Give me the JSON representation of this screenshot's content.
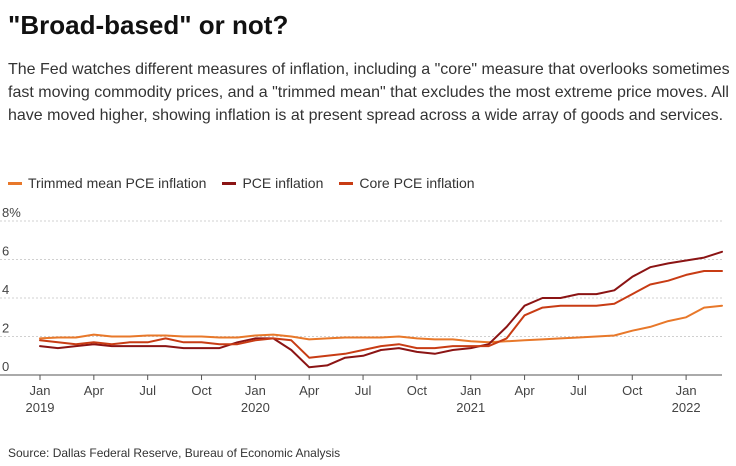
{
  "title": "\"Broad-based\" or not?",
  "subtitle": "The Fed watches different measures of inflation, including a \"core\" measure that overlooks sometimes fast moving commodity prices, and a \"trimmed mean\" that excludes the most extreme price moves. All have moved higher, showing inflation is at present spread across a wide array of goods and services.",
  "source": "Source: Dallas Federal Reserve, Bureau of Economic Analysis",
  "chart_data": {
    "type": "line",
    "title": "\"Broad-based\" or not?",
    "xlabel": "",
    "ylabel": "",
    "ylim": [
      0,
      8
    ],
    "yticks": [
      0,
      2,
      4,
      6,
      8
    ],
    "ytick_labels": [
      "0",
      "2",
      "4",
      "6",
      "8%"
    ],
    "grid": true,
    "legend_position": "top-left",
    "x_tick_labels": [
      {
        "index": 0,
        "month": "Jan",
        "year": "2019"
      },
      {
        "index": 3,
        "month": "Apr",
        "year": ""
      },
      {
        "index": 6,
        "month": "Jul",
        "year": ""
      },
      {
        "index": 9,
        "month": "Oct",
        "year": ""
      },
      {
        "index": 12,
        "month": "Jan",
        "year": "2020"
      },
      {
        "index": 15,
        "month": "Apr",
        "year": ""
      },
      {
        "index": 18,
        "month": "Jul",
        "year": ""
      },
      {
        "index": 21,
        "month": "Oct",
        "year": ""
      },
      {
        "index": 24,
        "month": "Jan",
        "year": "2021"
      },
      {
        "index": 27,
        "month": "Apr",
        "year": ""
      },
      {
        "index": 30,
        "month": "Jul",
        "year": ""
      },
      {
        "index": 33,
        "month": "Oct",
        "year": ""
      },
      {
        "index": 36,
        "month": "Jan",
        "year": "2022"
      }
    ],
    "series": [
      {
        "name": "Trimmed mean PCE inflation",
        "color": "#e8782a",
        "values": [
          1.9,
          1.95,
          1.95,
          2.1,
          2.0,
          2.0,
          2.05,
          2.05,
          2.0,
          2.0,
          1.95,
          1.95,
          2.05,
          2.1,
          2.0,
          1.85,
          1.9,
          1.95,
          1.95,
          1.95,
          2.0,
          1.9,
          1.85,
          1.85,
          1.75,
          1.7,
          1.75,
          1.8,
          1.85,
          1.9,
          1.95,
          2.0,
          2.05,
          2.3,
          2.5,
          2.8,
          3.0,
          3.5,
          3.6
        ]
      },
      {
        "name": "PCE inflation",
        "color": "#8b1414",
        "values": [
          1.5,
          1.4,
          1.5,
          1.6,
          1.5,
          1.5,
          1.5,
          1.5,
          1.4,
          1.4,
          1.4,
          1.7,
          1.9,
          1.9,
          1.3,
          0.4,
          0.5,
          0.9,
          1.0,
          1.3,
          1.4,
          1.2,
          1.1,
          1.3,
          1.4,
          1.6,
          2.5,
          3.6,
          4.0,
          4.0,
          4.2,
          4.2,
          4.4,
          5.1,
          5.6,
          5.8,
          5.95,
          6.1,
          6.4
        ]
      },
      {
        "name": "Core PCE inflation",
        "color": "#c83c14",
        "values": [
          1.8,
          1.7,
          1.6,
          1.7,
          1.6,
          1.7,
          1.7,
          1.9,
          1.7,
          1.7,
          1.6,
          1.6,
          1.8,
          1.9,
          1.8,
          0.9,
          1.0,
          1.1,
          1.3,
          1.5,
          1.6,
          1.4,
          1.4,
          1.5,
          1.5,
          1.5,
          1.9,
          3.1,
          3.5,
          3.6,
          3.6,
          3.6,
          3.7,
          4.2,
          4.7,
          4.9,
          5.2,
          5.4,
          5.4
        ]
      }
    ]
  }
}
